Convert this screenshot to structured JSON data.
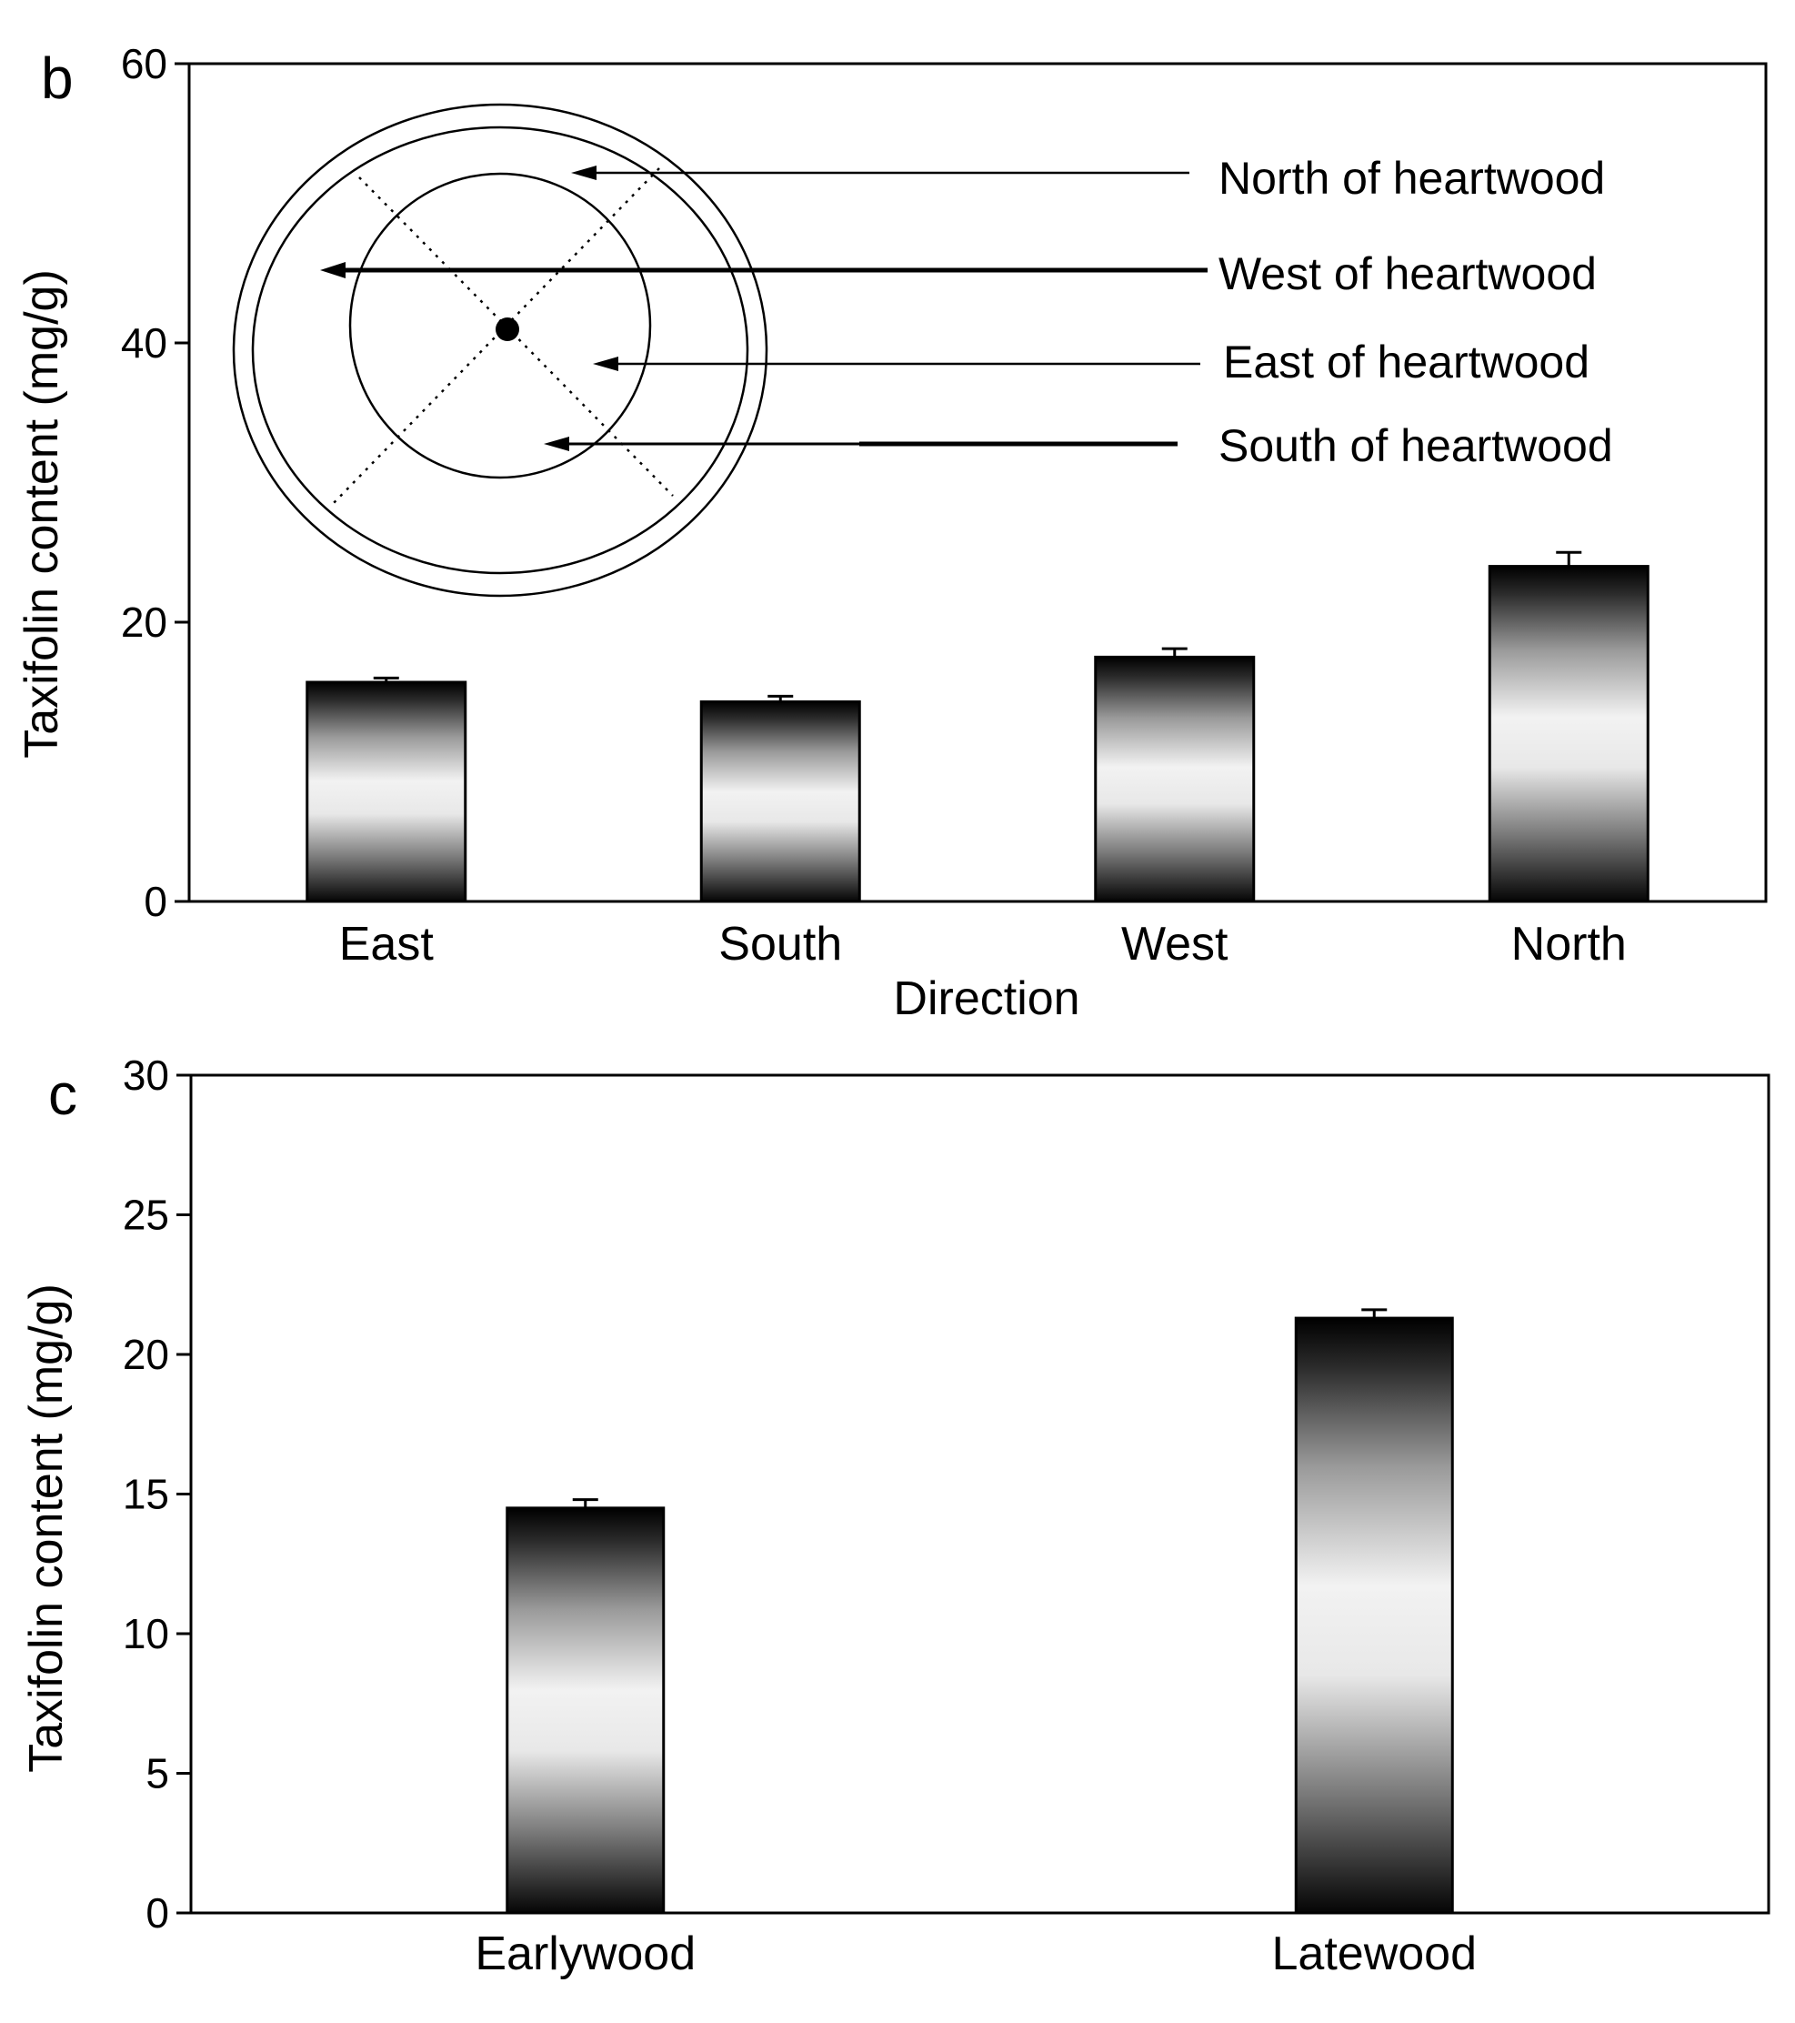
{
  "chart_data": [
    {
      "panel": "b",
      "type": "bar",
      "title": "",
      "xlabel": "Direction",
      "ylabel": "Taxifolin content (mg/g)",
      "categories": [
        "East",
        "South",
        "West",
        "North"
      ],
      "values": [
        15.7,
        14.3,
        17.5,
        24.0
      ],
      "errors": [
        0.3,
        0.4,
        0.6,
        1.0
      ],
      "ylim": [
        0,
        60
      ],
      "yticks": [
        0,
        20,
        40,
        60
      ],
      "grid": false,
      "inset": {
        "labels": [
          "North of heartwood",
          "West of heartwood",
          "East of heartwood",
          "South of heartwood"
        ]
      }
    },
    {
      "panel": "c",
      "type": "bar",
      "title": "",
      "xlabel": "",
      "ylabel": "Taxifolin content (mg/g)",
      "categories": [
        "Earlywood",
        "Latewood"
      ],
      "values": [
        14.5,
        21.3
      ],
      "errors": [
        0.3,
        0.3
      ],
      "ylim": [
        0,
        30
      ],
      "yticks": [
        0,
        5,
        10,
        15,
        20,
        25,
        30
      ],
      "grid": false
    }
  ]
}
